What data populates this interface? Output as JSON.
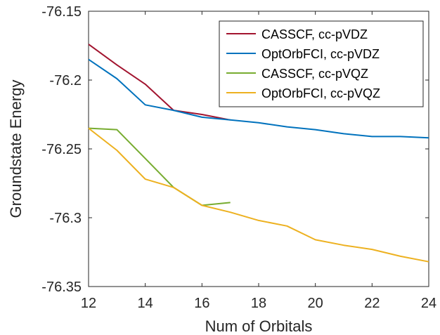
{
  "chart_data": {
    "type": "line",
    "xlabel": "Num of Orbitals",
    "ylabel": "Groundstate Energy",
    "xlim": [
      12,
      24
    ],
    "ylim": [
      -76.35,
      -76.15
    ],
    "xticks": [
      12,
      14,
      16,
      18,
      20,
      22,
      24
    ],
    "yticks": [
      -76.35,
      -76.3,
      -76.25,
      -76.2,
      -76.15
    ],
    "xtick_labels": [
      "12",
      "14",
      "16",
      "18",
      "20",
      "22",
      "24"
    ],
    "ytick_labels": [
      "-76.35",
      "-76.3",
      "-76.25",
      "-76.2",
      "-76.15"
    ],
    "grid": false,
    "legend_position": "top-right",
    "series": [
      {
        "name": "CASSCF, cc-pVDZ",
        "color": "#A2142F",
        "x": [
          12,
          13,
          14,
          15,
          16,
          17
        ],
        "y": [
          -76.174,
          -76.189,
          -76.203,
          -76.222,
          -76.225,
          -76.229
        ]
      },
      {
        "name": "OptOrbFCI, cc-pVDZ",
        "color": "#0072BD",
        "x": [
          12,
          13,
          14,
          15,
          16,
          17,
          18,
          19,
          20,
          21,
          22,
          23,
          24
        ],
        "y": [
          -76.185,
          -76.199,
          -76.218,
          -76.222,
          -76.227,
          -76.229,
          -76.231,
          -76.234,
          -76.236,
          -76.239,
          -76.241,
          -76.241,
          -76.242
        ]
      },
      {
        "name": "CASSCF, cc-pVQZ",
        "color": "#77AC30",
        "x": [
          12,
          13,
          14,
          15,
          16,
          17
        ],
        "y": [
          -76.235,
          -76.236,
          -76.257,
          -76.278,
          -76.291,
          -76.289
        ]
      },
      {
        "name": "OptOrbFCI, cc-pVQZ",
        "color": "#EDB120",
        "x": [
          12,
          13,
          14,
          15,
          16,
          17,
          18,
          19,
          20,
          21,
          22,
          23,
          24
        ],
        "y": [
          -76.235,
          -76.251,
          -76.272,
          -76.278,
          -76.291,
          -76.296,
          -76.302,
          -76.306,
          -76.316,
          -76.32,
          -76.323,
          -76.328,
          -76.332
        ]
      }
    ]
  }
}
